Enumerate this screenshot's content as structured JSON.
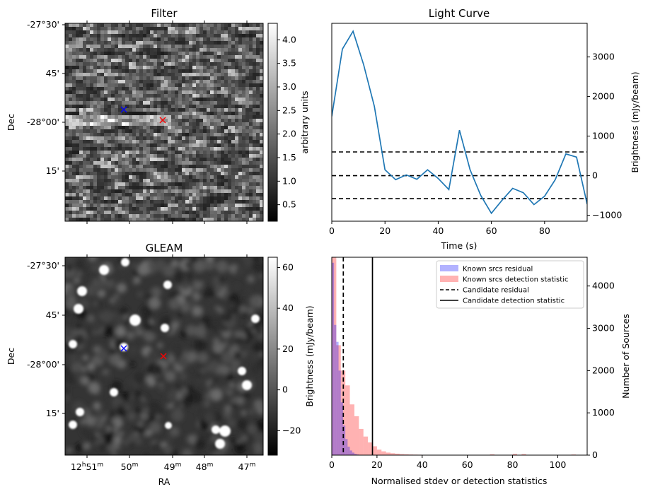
{
  "chart_data": [
    {
      "type": "heatmap",
      "title": "Filter",
      "xlabel": "",
      "ylabel": "Dec",
      "yticks": [
        "-27°30'",
        "45'",
        "-28°00'",
        "15'"
      ],
      "colorbar": {
        "label": "arbitrary units",
        "range": [
          0.15,
          4.35
        ],
        "ticks": [
          "0.5",
          "1.0",
          "1.5",
          "2.0",
          "2.5",
          "3.0",
          "3.5",
          "4.0"
        ],
        "colormap": "gray"
      },
      "markers": [
        {
          "symbol": "x",
          "color": "#0000ff"
        },
        {
          "symbol": "x",
          "color": "#ff0000"
        }
      ]
    },
    {
      "type": "line",
      "title": "Light Curve",
      "xlabel": "Time (s)",
      "ylabel": "Brightness (mJy/beam)",
      "xlim": [
        0,
        96
      ],
      "ylim": [
        -1150,
        3850
      ],
      "xticks": [
        "0",
        "20",
        "40",
        "60",
        "80"
      ],
      "yticks": [
        "−1000",
        "0",
        "1000",
        "2000",
        "3000"
      ],
      "x": [
        0,
        4,
        8,
        12,
        16,
        20,
        24,
        28,
        32,
        36,
        40,
        44,
        48,
        52,
        56,
        60,
        64,
        68,
        72,
        76,
        80,
        84,
        88,
        92,
        96
      ],
      "series": [
        {
          "color": "#1f77b4",
          "values": [
            1500,
            3200,
            3650,
            2800,
            1750,
            150,
            -100,
            20,
            -90,
            150,
            -70,
            -350,
            1150,
            150,
            -500,
            -950,
            -620,
            -320,
            -430,
            -730,
            -520,
            -100,
            550,
            470,
            -720
          ]
        }
      ],
      "hlines": [
        600,
        0,
        -580
      ]
    },
    {
      "type": "heatmap",
      "title": "GLEAM",
      "xlabel": "RA",
      "ylabel": "Dec",
      "xticks": [
        "12h51m",
        "50m",
        "49m",
        "48m",
        "47m"
      ],
      "xticks_display": [
        {
          "base": "12",
          "h": "h",
          "min": "51",
          "m": "m"
        },
        {
          "base": "",
          "h": "",
          "min": "50",
          "m": "m"
        },
        {
          "base": "",
          "h": "",
          "min": "49",
          "m": "m"
        },
        {
          "base": "",
          "h": "",
          "min": "48",
          "m": "m"
        },
        {
          "base": "",
          "h": "",
          "min": "47",
          "m": "m"
        }
      ],
      "yticks": [
        "-27°30'",
        "45'",
        "-28°00'",
        "15'"
      ],
      "colorbar": {
        "label": "Brightness (mJy/beam)",
        "range": [
          -32,
          65
        ],
        "ticks": [
          "−20",
          "0",
          "20",
          "40",
          "60"
        ],
        "colormap": "gray"
      },
      "markers": [
        {
          "symbol": "x",
          "color": "#0000ff"
        },
        {
          "symbol": "x",
          "color": "#ff0000"
        }
      ]
    },
    {
      "type": "bar",
      "title": "",
      "xlabel": "Normalised stdev or detection statistics",
      "ylabel": "Number of Sources",
      "xlim": [
        0,
        113
      ],
      "ylim": [
        0,
        4680
      ],
      "xticks": [
        "0",
        "20",
        "40",
        "60",
        "80",
        "100"
      ],
      "yticks": [
        "0",
        "1000",
        "2000",
        "3000",
        "4000"
      ],
      "bin_width": 2,
      "series": [
        {
          "name": "Known srcs residual",
          "color": "#0000ff",
          "alpha": 0.3,
          "x": [
            0,
            1,
            2,
            3,
            4,
            5,
            6,
            7,
            8,
            9,
            10,
            11
          ],
          "values": [
            4550,
            3080,
            2680,
            2000,
            1250,
            700,
            380,
            200,
            110,
            60,
            30,
            15
          ],
          "bin_width": 1
        },
        {
          "name": "Known srcs detection statistic",
          "color": "#ff0000",
          "alpha": 0.3,
          "x": [
            0,
            2,
            4,
            6,
            8,
            10,
            12,
            14,
            16,
            18,
            20,
            22,
            24,
            26,
            28,
            30,
            32,
            34,
            36,
            38,
            40,
            44,
            48,
            52,
            58,
            70,
            80,
            84,
            106
          ],
          "values": [
            4680,
            2600,
            2000,
            1650,
            1200,
            920,
            620,
            440,
            300,
            210,
            130,
            90,
            60,
            45,
            35,
            25,
            20,
            15,
            12,
            10,
            8,
            6,
            5,
            4,
            4,
            20,
            30,
            25,
            15
          ]
        }
      ],
      "vlines": [
        {
          "name": "Candidate residual",
          "x": 5.1,
          "style": "dashed"
        },
        {
          "name": "Candidate detection statistic",
          "x": 18.0,
          "style": "solid"
        }
      ],
      "legend": "top-right"
    }
  ]
}
